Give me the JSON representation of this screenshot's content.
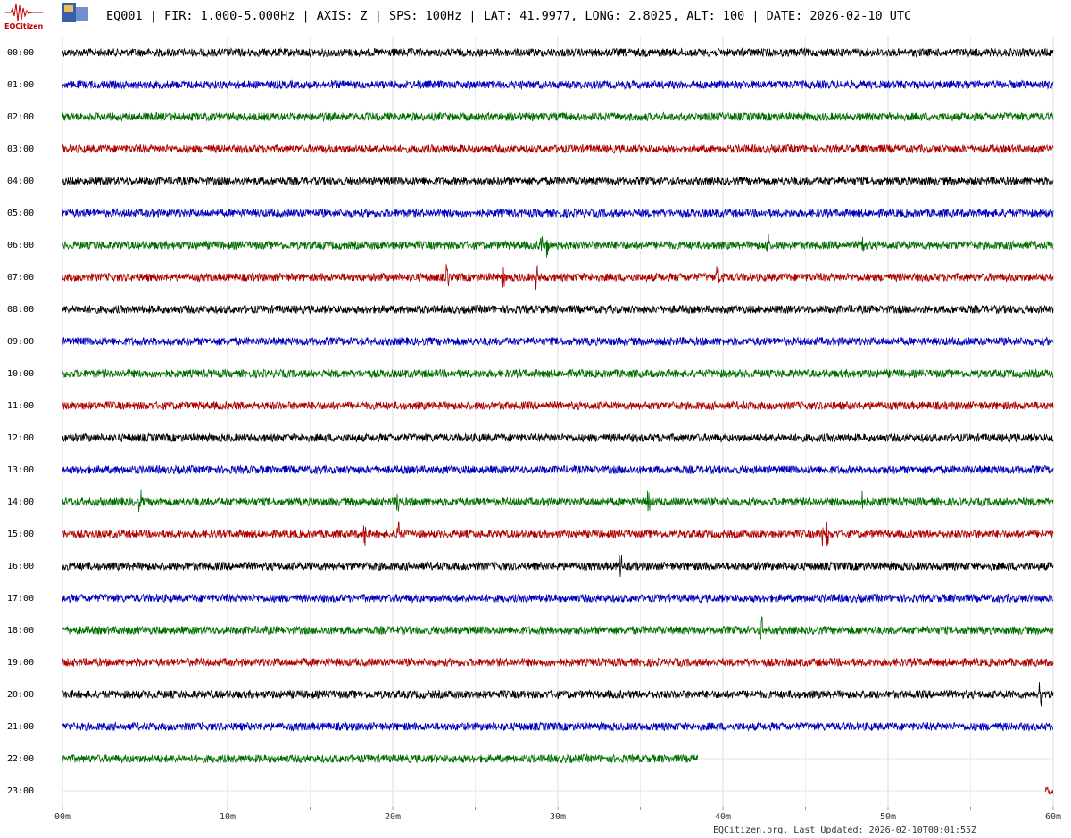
{
  "header": {
    "title": "EQ001 | FIR: 1.000-5.000Hz | AXIS: Z | SPS: 100Hz | LAT: 41.9977, LONG: 2.8025, ALT: 100 | DATE: 2026-02-10 UTC"
  },
  "logo": {
    "label": "EQCitizen"
  },
  "rows": [
    "00:00",
    "01:00",
    "02:00",
    "03:00",
    "04:00",
    "05:00",
    "06:00",
    "07:00",
    "08:00",
    "09:00",
    "10:00",
    "11:00",
    "12:00",
    "13:00",
    "14:00",
    "15:00",
    "16:00",
    "17:00",
    "18:00",
    "19:00",
    "20:00",
    "21:00",
    "22:00",
    "23:00"
  ],
  "trace_colors": [
    "#000000",
    "#0000c0",
    "#006f00",
    "#b00000"
  ],
  "x_ticks": [
    "00m",
    "10m",
    "20m",
    "30m",
    "40m",
    "50m",
    "60m"
  ],
  "footer": "EQCitizen.org. Last Updated: 2026-02-10T00:01:55Z"
}
